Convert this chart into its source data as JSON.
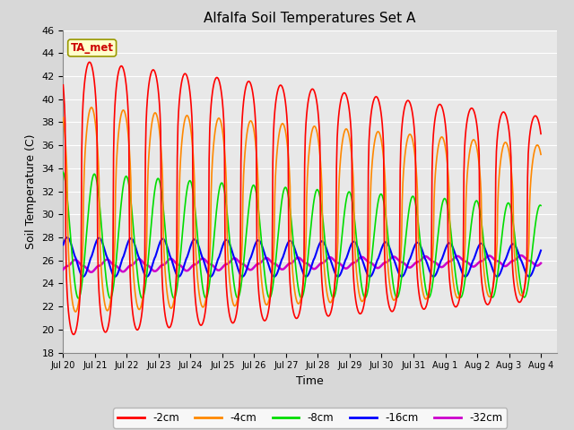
{
  "title": "Alfalfa Soil Temperatures Set A",
  "xlabel": "Time",
  "ylabel": "Soil Temperature (C)",
  "ylim": [
    18,
    46
  ],
  "background_color": "#d8d8d8",
  "plot_bg_color": "#e8e8e8",
  "grid_color": "#ffffff",
  "series": {
    "-2cm": {
      "color": "#ff0000",
      "lw": 1.2
    },
    "-4cm": {
      "color": "#ff8800",
      "lw": 1.2
    },
    "-8cm": {
      "color": "#00dd00",
      "lw": 1.2
    },
    "-16cm": {
      "color": "#0000ff",
      "lw": 1.5
    },
    "-32cm": {
      "color": "#cc00cc",
      "lw": 1.8
    }
  },
  "legend_annotation": "TA_met",
  "xtick_labels": [
    "Jul 20",
    "Jul 21",
    "Jul 22",
    "Jul 23",
    "Jul 24",
    "Jul 25",
    "Jul 26",
    "Jul 27",
    "Jul 28",
    "Jul 29",
    "Jul 30",
    "Jul 31",
    "Aug 1",
    "Aug 2",
    "Aug 3",
    "Aug 4"
  ],
  "ytick_labels": [
    18,
    20,
    22,
    24,
    26,
    28,
    30,
    32,
    34,
    36,
    38,
    40,
    42,
    44,
    46
  ],
  "n_days": 15,
  "pts_per_day": 48,
  "series_params": {
    "-2cm": {
      "mean_s": 31.5,
      "mean_e": 30.5,
      "amp_s": 12.0,
      "amp_e": 8.0,
      "lag": 0.0,
      "sharpness": 3.5
    },
    "-4cm": {
      "mean_s": 30.5,
      "mean_e": 29.5,
      "amp_s": 9.0,
      "amp_e": 6.5,
      "lag": 0.06,
      "sharpness": 2.0
    },
    "-8cm": {
      "mean_s": 28.2,
      "mean_e": 26.8,
      "amp_s": 5.5,
      "amp_e": 4.0,
      "lag": 0.15,
      "sharpness": 1.0
    },
    "-16cm": {
      "mean_s": 26.3,
      "mean_e": 26.0,
      "amp_s": 1.7,
      "amp_e": 1.4,
      "lag": 0.3,
      "sharpness": 0.8
    },
    "-32cm": {
      "mean_s": 25.5,
      "mean_e": 26.0,
      "amp_s": 0.55,
      "amp_e": 0.45,
      "lag": 0.55,
      "sharpness": 0.5
    }
  }
}
